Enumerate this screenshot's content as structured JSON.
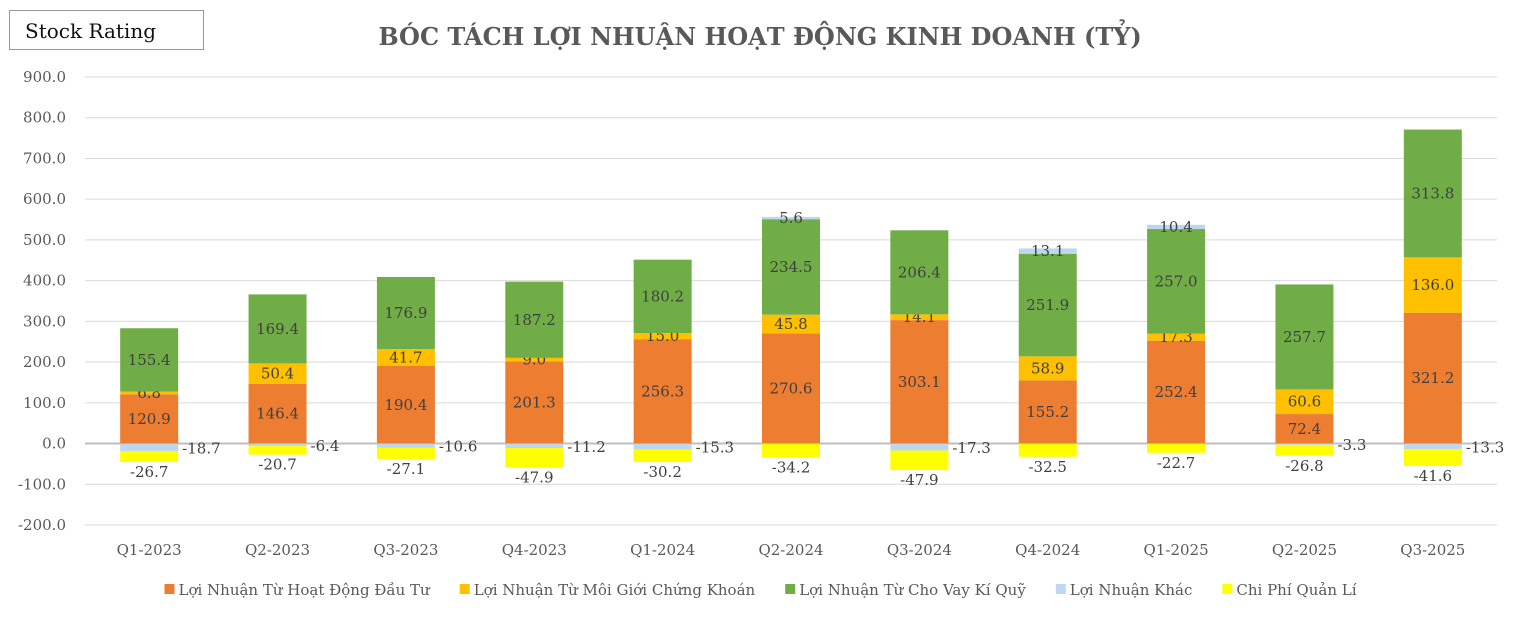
{
  "stock_rating_label": "Stock Rating",
  "chart_data": {
    "type": "bar",
    "stacked": true,
    "title": "BÓC TÁCH LỢI NHUẬN HOẠT ĐỘNG KINH DOANH (TỶ)",
    "xlabel": "",
    "ylabel": "",
    "ylim": [
      -200,
      900
    ],
    "yticks": [
      "900.0",
      "800.0",
      "700.0",
      "600.0",
      "500.0",
      "400.0",
      "300.0",
      "200.0",
      "100.0",
      "0.0",
      "-100.0",
      "-200.0"
    ],
    "grid": true,
    "legend_position": "bottom",
    "categories": [
      "Q1-2023",
      "Q2-2023",
      "Q3-2023",
      "Q4-2023",
      "Q1-2024",
      "Q2-2024",
      "Q3-2024",
      "Q4-2024",
      "Q1-2025",
      "Q2-2025",
      "Q3-2025"
    ],
    "series": [
      {
        "name": "Lợi Nhuận Từ Hoạt Động Đầu Tư",
        "color": "#ED7D31",
        "values": [
          120.9,
          146.4,
          190.4,
          201.3,
          256.3,
          270.6,
          303.1,
          155.2,
          252.4,
          72.4,
          321.2
        ]
      },
      {
        "name": "Lợi Nhuận Từ Môi Giới Chứng Khoán",
        "color": "#FFC000",
        "values": [
          6.8,
          50.4,
          41.7,
          9.0,
          15.0,
          45.8,
          14.1,
          58.9,
          17.3,
          60.6,
          136.0
        ]
      },
      {
        "name": "Lợi Nhuận Từ Cho Vay Kí Quỹ",
        "color": "#70AD47",
        "values": [
          155.4,
          169.4,
          176.9,
          187.2,
          180.2,
          234.5,
          206.4,
          251.9,
          257.0,
          257.7,
          313.8
        ]
      },
      {
        "name": "Lợi Nhuận Khác",
        "color": "#BDD7EE",
        "values": [
          -18.7,
          -6.4,
          -10.6,
          -11.2,
          -15.3,
          5.6,
          -17.3,
          13.1,
          10.4,
          -3.3,
          -13.3
        ]
      },
      {
        "name": "Chi Phí Quản Lí",
        "color": "#FFFF00",
        "values": [
          -26.7,
          -20.7,
          -27.1,
          -47.9,
          -30.2,
          -34.2,
          -47.9,
          -32.5,
          -22.7,
          -26.8,
          -41.6
        ]
      }
    ]
  }
}
